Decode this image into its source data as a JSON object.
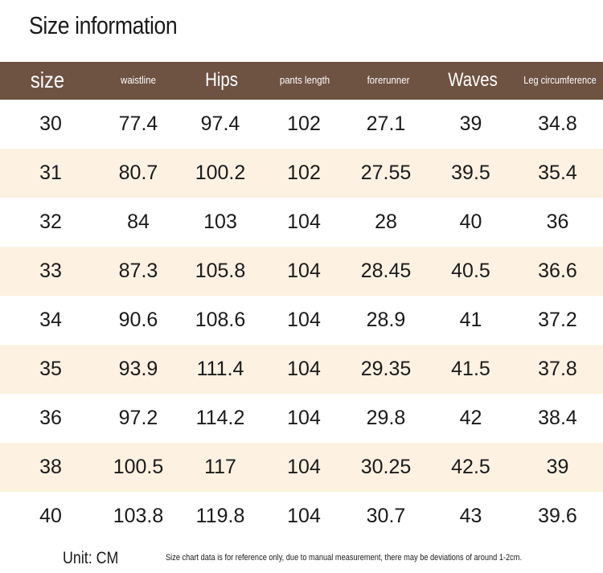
{
  "title": "Size information",
  "header": [
    "size",
    "waistline",
    "Hips",
    "pants length",
    "forerunner",
    "Waves",
    "Leg circumference"
  ],
  "rows": [
    [
      "30",
      "77.4",
      "97.4",
      "102",
      "27.1",
      "39",
      "34.8"
    ],
    [
      "31",
      "80.7",
      "100.2",
      "102",
      "27.55",
      "39.5",
      "35.4"
    ],
    [
      "32",
      "84",
      "103",
      "104",
      "28",
      "40",
      "36"
    ],
    [
      "33",
      "87.3",
      "105.8",
      "104",
      "28.45",
      "40.5",
      "36.6"
    ],
    [
      "34",
      "90.6",
      "108.6",
      "104",
      "28.9",
      "41",
      "37.2"
    ],
    [
      "35",
      "93.9",
      "111.4",
      "104",
      "29.35",
      "41.5",
      "37.8"
    ],
    [
      "36",
      "97.2",
      "114.2",
      "104",
      "29.8",
      "42",
      "38.4"
    ],
    [
      "38",
      "100.5",
      "117",
      "104",
      "30.25",
      "42.5",
      "39"
    ],
    [
      "40",
      "103.8",
      "119.8",
      "104",
      "30.7",
      "43",
      "39.6"
    ]
  ],
  "footer": {
    "unit": "Unit: CM",
    "note": "Size chart data is for reference only, due to manual measurement, there may be deviations of around 1-2cm."
  },
  "colors": {
    "header_bg": "#6e5242",
    "stripe_bg": "#fdf1e1",
    "row_bg": "#ffffff",
    "text": "#1a1a1a"
  }
}
